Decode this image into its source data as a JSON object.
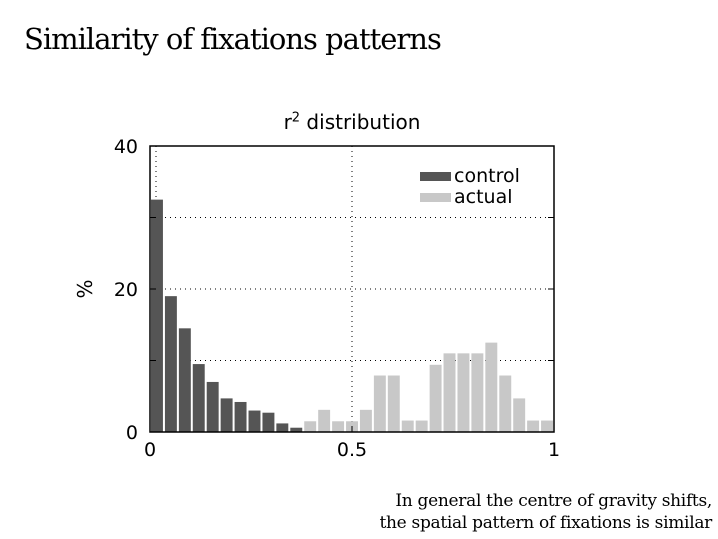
{
  "slide": {
    "title": "Similarity of fixations patterns",
    "footnote_line1": "In general the centre of gravity shifts,",
    "footnote_line2": "the spatial pattern of fixations is similar"
  },
  "chart_data": {
    "type": "bar",
    "title_base": "r",
    "title_sup": "2",
    "title_rest": " distribution",
    "xlabel": "",
    "ylabel": "%",
    "xlim": [
      0,
      1
    ],
    "ylim": [
      0,
      40
    ],
    "xticks": [
      0,
      0.5,
      1
    ],
    "xtick_labels": [
      "0",
      "0.5",
      "1"
    ],
    "yticks": [
      0,
      20,
      40
    ],
    "ytick_labels": [
      "0",
      "20",
      "40"
    ],
    "grid": "dotted",
    "legend_position": "top-right",
    "bin_width": 0.0345,
    "series": [
      {
        "name": "control",
        "color": "#555555",
        "x": [
          0.0,
          0.0345,
          0.069,
          0.1034,
          0.1379,
          0.1724,
          0.2069,
          0.2414,
          0.2759,
          0.3103,
          0.3448
        ],
        "values": [
          32.5,
          19.0,
          14.5,
          9.5,
          7.0,
          4.7,
          4.2,
          3.0,
          2.7,
          1.2,
          0.6
        ]
      },
      {
        "name": "actual",
        "color": "#c8c8c8",
        "x": [
          0.3793,
          0.4138,
          0.4483,
          0.4828,
          0.5172,
          0.5517,
          0.5862,
          0.6207,
          0.6552,
          0.6897,
          0.7241,
          0.7586,
          0.7931,
          0.8276,
          0.8621,
          0.8966,
          0.931,
          0.9655
        ],
        "values": [
          1.5,
          3.1,
          1.5,
          1.5,
          3.1,
          7.9,
          7.9,
          1.6,
          1.6,
          9.4,
          11.0,
          11.0,
          11.0,
          12.5,
          7.9,
          4.7,
          1.6,
          1.6
        ]
      }
    ]
  }
}
